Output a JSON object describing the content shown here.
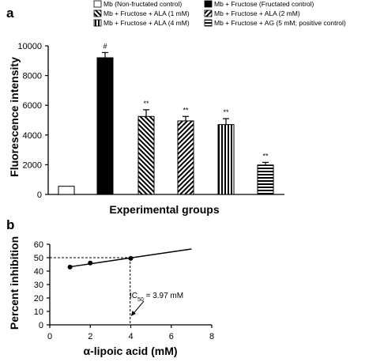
{
  "chart_data": [
    {
      "type": "bar",
      "panel_label": "a",
      "xlabel": "Experimental groups",
      "ylabel": "Fluorescence intensity",
      "ylim": [
        0,
        10000
      ],
      "yticks": [
        "0",
        "2000",
        "4000",
        "6000",
        "8000",
        "10000"
      ],
      "ytick_values": [
        0,
        2000,
        4000,
        6000,
        8000,
        10000
      ],
      "legend_placement": "top",
      "categories": [
        "Mb (Non-fructated control)",
        "Mb + Fructose (Fructated control)",
        "Mb + Fructose + ALA (1 mM)",
        "Mb + Fructose + ALA (2 mM)",
        "Mb + Fructose + ALA (4 mM)",
        "Mb + Fructose + AG (5 mM; positive control)"
      ],
      "values": [
        550,
        9200,
        5250,
        4950,
        4700,
        1980
      ],
      "errors": [
        0,
        350,
        450,
        300,
        400,
        180
      ],
      "annotations": [
        "",
        "#",
        "**",
        "**",
        "**",
        "**"
      ],
      "patterns": [
        "white",
        "black",
        "diag-back",
        "diag-fwd",
        "vertical",
        "horizontal"
      ]
    },
    {
      "type": "line",
      "panel_label": "b",
      "xlabel": "α-lipoic acid (mM)",
      "ylabel": "Percent inhibition",
      "xlim": [
        0,
        8
      ],
      "ylim": [
        0,
        60
      ],
      "xticks": [
        "0",
        "2",
        "4",
        "6",
        "8"
      ],
      "xtick_values": [
        0,
        2,
        4,
        6,
        8
      ],
      "yticks": [
        "0",
        "10",
        "20",
        "30",
        "40",
        "50",
        "60"
      ],
      "ytick_values": [
        0,
        10,
        20,
        30,
        40,
        50,
        60
      ],
      "points": {
        "x": [
          1,
          2,
          4
        ],
        "y": [
          43,
          46,
          49.5
        ]
      },
      "fit_line": {
        "x": [
          1,
          7
        ],
        "y": [
          43.2,
          56.5
        ]
      },
      "ic50": {
        "x": 3.97,
        "y": 50
      },
      "annotation": {
        "prefix": "IC",
        "sub": "50",
        "suffix": " = 3.97 mM"
      }
    }
  ]
}
